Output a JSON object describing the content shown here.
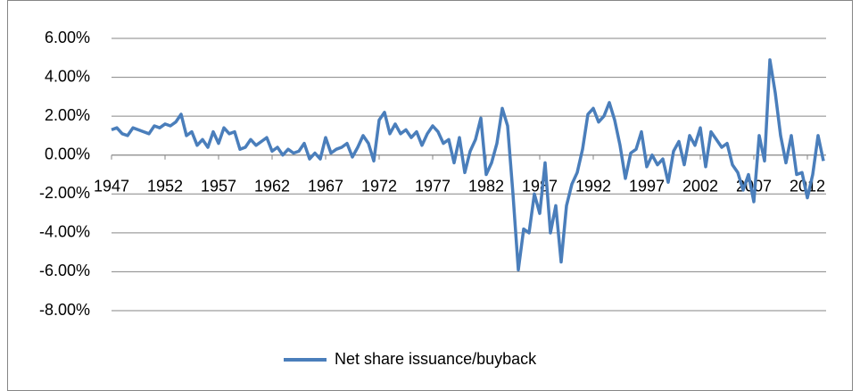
{
  "chart_data": {
    "type": "line",
    "x": [
      1947,
      1947.5,
      1948,
      1948.5,
      1949,
      1949.5,
      1950,
      1950.5,
      1951,
      1951.5,
      1952,
      1952.5,
      1953,
      1953.5,
      1954,
      1954.5,
      1955,
      1955.5,
      1956,
      1956.5,
      1957,
      1957.5,
      1958,
      1958.5,
      1959,
      1959.5,
      1960,
      1960.5,
      1961,
      1961.5,
      1962,
      1962.5,
      1963,
      1963.5,
      1964,
      1964.5,
      1965,
      1965.5,
      1966,
      1966.5,
      1967,
      1967.5,
      1968,
      1968.5,
      1969,
      1969.5,
      1970,
      1970.5,
      1971,
      1971.5,
      1972,
      1972.5,
      1973,
      1973.5,
      1974,
      1974.5,
      1975,
      1975.5,
      1976,
      1976.5,
      1977,
      1977.5,
      1978,
      1978.5,
      1979,
      1979.5,
      1980,
      1980.5,
      1981,
      1981.5,
      1982,
      1982.5,
      1983,
      1983.5,
      1984,
      1984.5,
      1985,
      1985.5,
      1986,
      1986.5,
      1987,
      1987.5,
      1988,
      1988.5,
      1989,
      1989.5,
      1990,
      1990.5,
      1991,
      1991.5,
      1992,
      1992.5,
      1993,
      1993.5,
      1994,
      1994.5,
      1995,
      1995.5,
      1996,
      1996.5,
      1997,
      1997.5,
      1998,
      1998.5,
      1999,
      1999.5,
      2000,
      2000.5,
      2001,
      2001.5,
      2002,
      2002.5,
      2003,
      2003.5,
      2004,
      2004.5,
      2005,
      2005.5,
      2006,
      2006.5,
      2007,
      2007.5,
      2008,
      2008.5,
      2009,
      2009.5,
      2010,
      2010.5,
      2011,
      2011.5,
      2012,
      2012.5,
      2013,
      2013.5
    ],
    "series": [
      {
        "name": "Net share issuance/buyback",
        "color": "#4a7ebb",
        "values": [
          1.3,
          1.4,
          1.1,
          1.0,
          1.4,
          1.3,
          1.2,
          1.1,
          1.5,
          1.4,
          1.6,
          1.5,
          1.7,
          2.1,
          1.0,
          1.2,
          0.5,
          0.8,
          0.4,
          1.2,
          0.6,
          1.4,
          1.1,
          1.2,
          0.3,
          0.4,
          0.8,
          0.5,
          0.7,
          0.9,
          0.2,
          0.4,
          0.0,
          0.3,
          0.1,
          0.2,
          0.6,
          -0.2,
          0.1,
          -0.2,
          0.9,
          0.1,
          0.3,
          0.4,
          0.6,
          -0.1,
          0.4,
          1.0,
          0.6,
          -0.3,
          1.8,
          2.2,
          1.1,
          1.6,
          1.1,
          1.3,
          0.9,
          1.2,
          0.5,
          1.1,
          1.5,
          1.2,
          0.6,
          0.8,
          -0.4,
          0.9,
          -0.9,
          0.2,
          0.8,
          1.9,
          -1.0,
          -0.4,
          0.6,
          2.4,
          1.5,
          -2.0,
          -5.9,
          -3.8,
          -4.0,
          -2.0,
          -3.0,
          -0.4,
          -4.0,
          -2.6,
          -5.5,
          -2.6,
          -1.5,
          -0.9,
          0.3,
          2.1,
          2.4,
          1.7,
          2.0,
          2.7,
          1.8,
          0.5,
          -1.2,
          0.1,
          0.3,
          1.2,
          -0.6,
          0.0,
          -0.5,
          -0.2,
          -1.4,
          0.2,
          0.7,
          -0.5,
          1.0,
          0.5,
          1.4,
          -0.6,
          1.2,
          0.8,
          0.4,
          0.6,
          -0.5,
          -0.9,
          -1.8,
          -1.0,
          -2.4,
          1.0,
          -0.3,
          4.9,
          3.2,
          1.0,
          -0.4,
          1.0,
          -1.0,
          -0.9,
          -2.2,
          -1.0,
          1.0,
          -0.3
        ]
      }
    ],
    "xlim": [
      1947,
      2013.75
    ],
    "xticks": [
      1947,
      1952,
      1957,
      1962,
      1967,
      1972,
      1977,
      1982,
      1987,
      1992,
      1997,
      2002,
      2007,
      2012
    ],
    "ylim": [
      -8,
      6
    ],
    "yticks": [
      {
        "value": -8,
        "label": "-8.00%"
      },
      {
        "value": -6,
        "label": "-6.00%"
      },
      {
        "value": -4,
        "label": "-4.00%"
      },
      {
        "value": -2,
        "label": "-2.00%"
      },
      {
        "value": 0,
        "label": "0.00%"
      },
      {
        "value": 2,
        "label": "2.00%"
      },
      {
        "value": 4,
        "label": "4.00%"
      },
      {
        "value": 6,
        "label": "6.00%"
      }
    ],
    "grid": true,
    "legend": "bottom"
  }
}
